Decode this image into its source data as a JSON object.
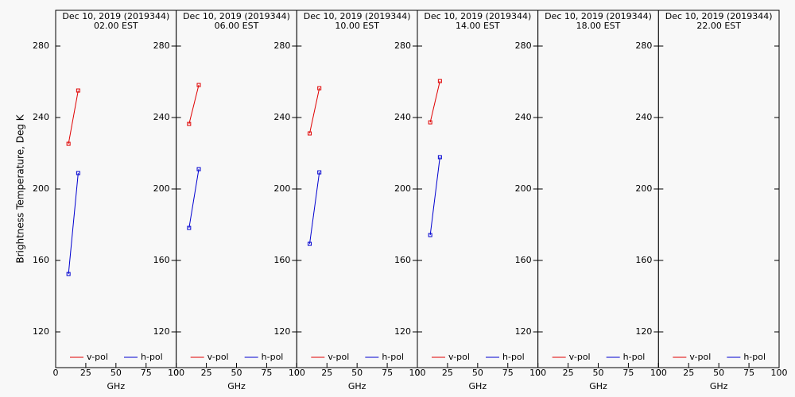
{
  "chart_data": [
    {
      "type": "line",
      "title": "Dec 10, 2019 (2019344)",
      "subtitle": "02.00 EST",
      "ylabel": "Brightness Temperature, Deg K",
      "xlabel": "GHz",
      "x": [
        10.65,
        18.7
      ],
      "series": [
        {
          "name": "v-pol",
          "color": "#e00000",
          "values": [
            225.3,
            255.1
          ]
        },
        {
          "name": "h-pol",
          "color": "#0000d0",
          "values": [
            152.4,
            208.9
          ]
        }
      ],
      "xlim": [
        0,
        100
      ],
      "xticks": [
        0,
        25,
        50,
        75,
        100
      ],
      "ylim": [
        100,
        300
      ],
      "yticks": [
        120,
        160,
        200,
        240,
        280
      ]
    },
    {
      "type": "line",
      "title": "Dec 10, 2019 (2019344)",
      "subtitle": "06.00 EST",
      "xlabel": "GHz",
      "x": [
        10.65,
        18.7
      ],
      "series": [
        {
          "name": "v-pol",
          "color": "#e00000",
          "values": [
            236.4,
            258.2
          ]
        },
        {
          "name": "h-pol",
          "color": "#0000d0",
          "values": [
            178.2,
            211.1
          ]
        }
      ],
      "xlim": [
        0,
        100
      ],
      "xticks": [
        0,
        25,
        50,
        75,
        100
      ],
      "ylim": [
        100,
        300
      ],
      "yticks": [
        120,
        160,
        200,
        240,
        280
      ]
    },
    {
      "type": "line",
      "title": "Dec 10, 2019 (2019344)",
      "subtitle": "10.00 EST",
      "xlabel": "GHz",
      "x": [
        10.65,
        18.7
      ],
      "series": [
        {
          "name": "v-pol",
          "color": "#e00000",
          "values": [
            231.1,
            256.4
          ]
        },
        {
          "name": "h-pol",
          "color": "#0000d0",
          "values": [
            169.3,
            209.3
          ]
        }
      ],
      "xlim": [
        0,
        100
      ],
      "xticks": [
        0,
        25,
        50,
        75,
        100
      ],
      "ylim": [
        100,
        300
      ],
      "yticks": [
        120,
        160,
        200,
        240,
        280
      ]
    },
    {
      "type": "line",
      "title": "Dec 10, 2019 (2019344)",
      "subtitle": "14.00 EST",
      "xlabel": "GHz",
      "x": [
        10.65,
        18.7
      ],
      "series": [
        {
          "name": "v-pol",
          "color": "#e00000",
          "values": [
            237.3,
            260.4
          ]
        },
        {
          "name": "h-pol",
          "color": "#0000d0",
          "values": [
            174.2,
            217.8
          ]
        }
      ],
      "xlim": [
        0,
        100
      ],
      "xticks": [
        0,
        25,
        50,
        75,
        100
      ],
      "ylim": [
        100,
        300
      ],
      "yticks": [
        120,
        160,
        200,
        240,
        280
      ]
    },
    {
      "type": "line",
      "title": "Dec 10, 2019 (2019344)",
      "subtitle": "18.00 EST",
      "xlabel": "GHz",
      "x": [
        10.65,
        18.7
      ],
      "series": [
        {
          "name": "v-pol",
          "color": "#e00000",
          "values": [
            null,
            null
          ]
        },
        {
          "name": "h-pol",
          "color": "#0000d0",
          "values": [
            null,
            null
          ]
        }
      ],
      "xlim": [
        0,
        100
      ],
      "xticks": [
        0,
        25,
        50,
        75,
        100
      ],
      "ylim": [
        100,
        300
      ],
      "yticks": [
        120,
        160,
        200,
        240,
        280
      ]
    },
    {
      "type": "line",
      "title": "Dec 10, 2019 (2019344)",
      "subtitle": "22.00 EST",
      "xlabel": "GHz",
      "x": [
        10.65,
        18.7
      ],
      "series": [
        {
          "name": "v-pol",
          "color": "#e00000",
          "values": [
            null,
            null
          ]
        },
        {
          "name": "h-pol",
          "color": "#0000d0",
          "values": [
            null,
            null
          ]
        }
      ],
      "xlim": [
        0,
        100
      ],
      "xticks": [
        0,
        25,
        50,
        75,
        100
      ],
      "ylim": [
        100,
        300
      ],
      "yticks": [
        120,
        160,
        200,
        240,
        280
      ]
    }
  ]
}
